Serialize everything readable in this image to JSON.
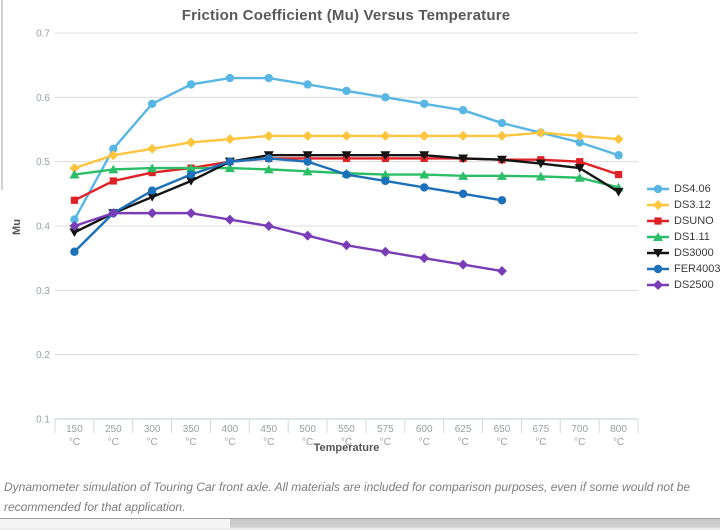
{
  "chart_data": {
    "type": "line",
    "title": "Friction Coefficient (Mu) Versus Temperature",
    "xlabel": "Temperature",
    "ylabel": "Mu",
    "ylim": [
      0.1,
      0.7
    ],
    "y_ticks": [
      0.1,
      0.2,
      0.3,
      0.4,
      0.5,
      0.6,
      0.7
    ],
    "grid": "horizontal",
    "legend_position": "right",
    "categories": [
      "150",
      "250",
      "300",
      "350",
      "400",
      "450",
      "500",
      "550",
      "575",
      "600",
      "625",
      "650",
      "675",
      "700",
      "800"
    ],
    "category_unit": "°C",
    "series": [
      {
        "name": "DS4.06",
        "color": "#58b6e4",
        "marker": "circle",
        "values": [
          0.41,
          0.52,
          0.59,
          0.62,
          0.63,
          0.63,
          0.62,
          0.61,
          0.6,
          0.59,
          0.58,
          0.56,
          0.545,
          0.53,
          0.51
        ]
      },
      {
        "name": "DS3.12",
        "color": "#ffc43d",
        "marker": "diamond",
        "values": [
          0.49,
          0.51,
          0.52,
          0.53,
          0.535,
          0.54,
          0.54,
          0.54,
          0.54,
          0.54,
          0.54,
          0.54,
          0.545,
          0.54,
          0.535
        ]
      },
      {
        "name": "DSUNO",
        "color": "#e02125",
        "marker": "square",
        "values": [
          0.44,
          0.47,
          0.483,
          0.49,
          0.5,
          0.505,
          0.505,
          0.505,
          0.505,
          0.505,
          0.505,
          0.503,
          0.503,
          0.5,
          0.48
        ]
      },
      {
        "name": "DS1.11",
        "color": "#2bbe66",
        "marker": "triangle-up",
        "values": [
          0.48,
          0.488,
          0.49,
          0.49,
          0.49,
          0.488,
          0.485,
          0.482,
          0.48,
          0.48,
          0.478,
          0.478,
          0.477,
          0.475,
          0.46
        ]
      },
      {
        "name": "DS3000",
        "color": "#141414",
        "marker": "triangle-down",
        "values": [
          0.39,
          0.42,
          0.445,
          0.47,
          0.5,
          0.51,
          0.51,
          0.51,
          0.51,
          0.51,
          0.505,
          0.503,
          0.497,
          0.49,
          0.453
        ]
      },
      {
        "name": "FER4003",
        "color": "#1d71b8",
        "marker": "circle",
        "values": [
          0.36,
          0.42,
          0.455,
          0.48,
          0.5,
          0.505,
          0.5,
          0.48,
          0.47,
          0.46,
          0.45,
          0.44,
          null,
          null,
          null
        ]
      },
      {
        "name": "DS2500",
        "color": "#7a3db8",
        "marker": "diamond",
        "values": [
          0.4,
          0.42,
          0.42,
          0.42,
          0.41,
          0.4,
          0.385,
          0.37,
          0.36,
          0.35,
          0.34,
          0.33,
          null,
          null,
          null
        ]
      }
    ]
  },
  "caption": {
    "line1": "Dynamometer simulation of Touring Car front axle. All materials are included for comparison purposes, even if some would not be",
    "line2": "recommended for that application."
  }
}
